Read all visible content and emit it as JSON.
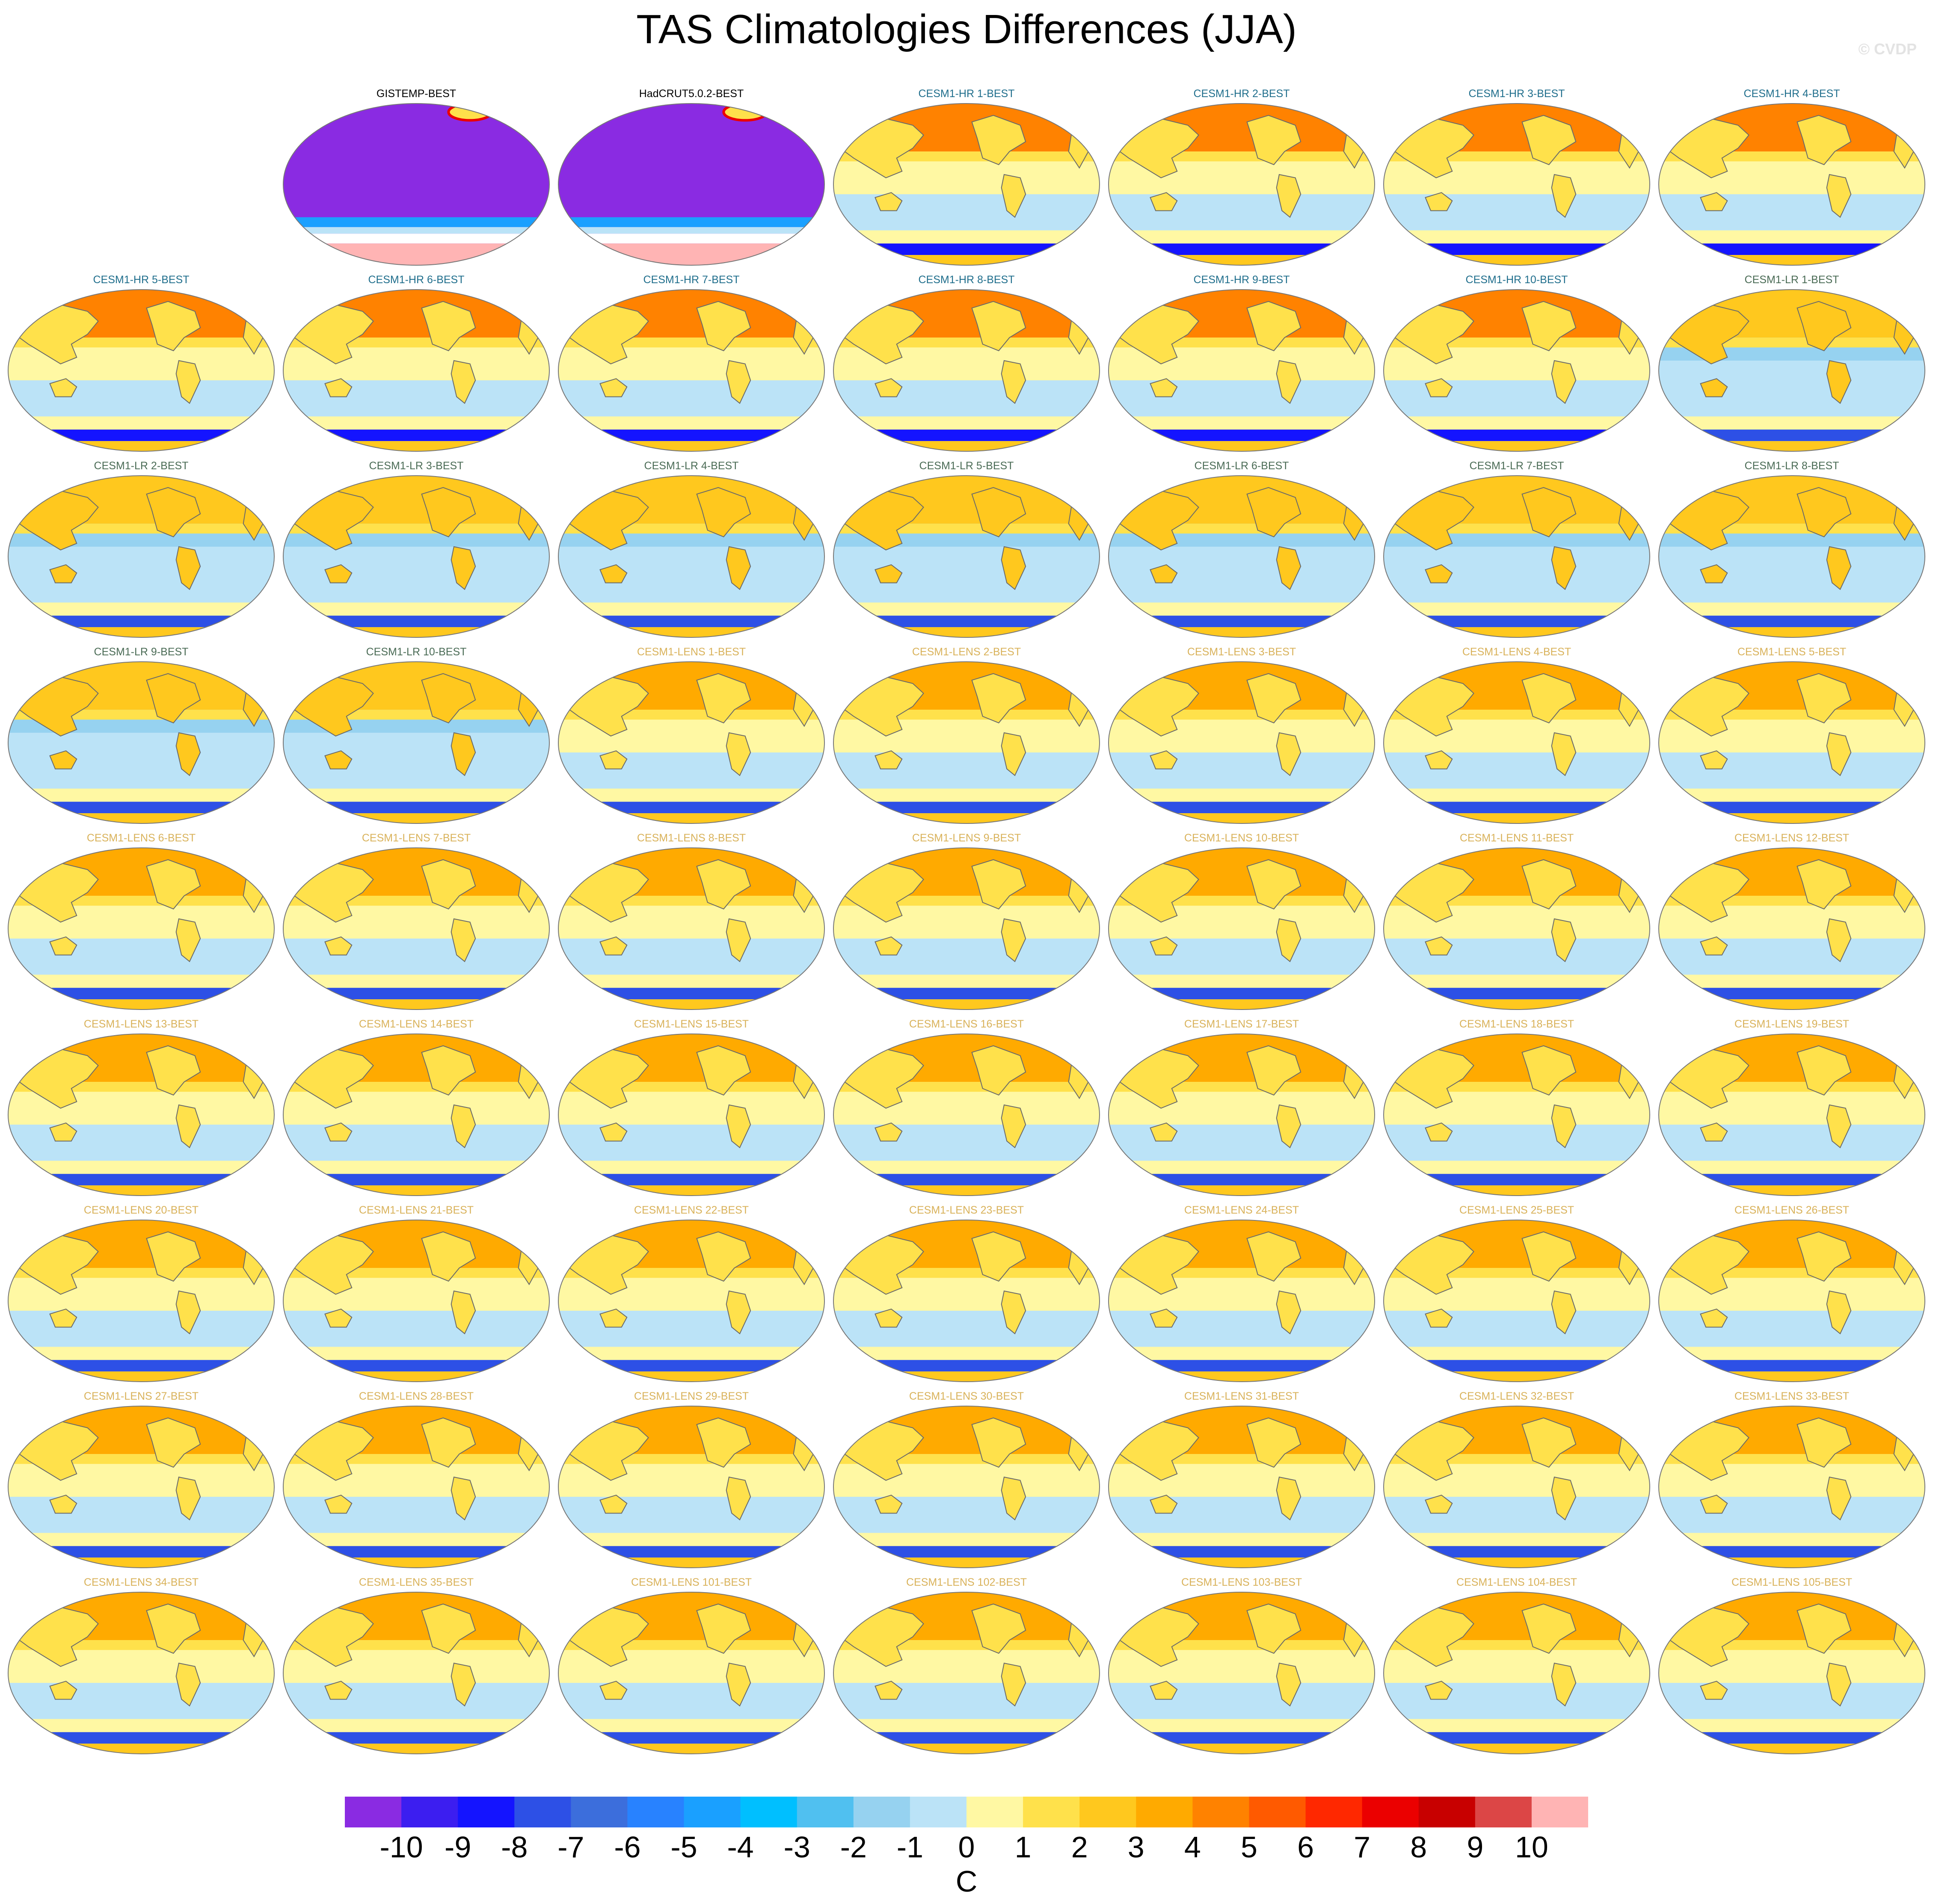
{
  "title": "TAS Climatologies Differences (JJA)",
  "credit": "© CVDP",
  "colorbar": {
    "labels": [
      "-10",
      "-9",
      "-8",
      "-7",
      "-6",
      "-5",
      "-4",
      "-3",
      "-2",
      "-1",
      "0",
      "1",
      "2",
      "3",
      "4",
      "5",
      "6",
      "7",
      "8",
      "9",
      "10"
    ],
    "unit": "C",
    "colors": [
      "#8a2be2",
      "#3c1ef0",
      "#1414ff",
      "#2d50e6",
      "#3c6edc",
      "#2882ff",
      "#1aa0ff",
      "#00bfff",
      "#50c0f0",
      "#96d2f0",
      "#bbe3f7",
      "#fff8a3",
      "#ffe14b",
      "#ffc81e",
      "#ffaa00",
      "#ff8200",
      "#ff5a00",
      "#ff2800",
      "#eb0000",
      "#c80000",
      "#dc4646",
      "#ffb4b4"
    ]
  },
  "chart_data": {
    "type": "heatmap",
    "title": "TAS Climatologies Differences (JJA)",
    "levels": [
      -10,
      -9,
      -8,
      -7,
      -6,
      -5,
      -4,
      -3,
      -2,
      -1,
      0,
      1,
      2,
      3,
      4,
      5,
      6,
      7,
      8,
      9,
      10
    ],
    "unit": "C",
    "panels": [
      {
        "title": "GISTEMP-BEST",
        "group": "obs"
      },
      {
        "title": "HadCRUT5.0.2-BEST",
        "group": "obs"
      },
      {
        "title": "CESM1-HR 1-BEST",
        "group": "hr"
      },
      {
        "title": "CESM1-HR 2-BEST",
        "group": "hr"
      },
      {
        "title": "CESM1-HR 3-BEST",
        "group": "hr"
      },
      {
        "title": "CESM1-HR 4-BEST",
        "group": "hr"
      },
      {
        "title": "CESM1-HR 5-BEST",
        "group": "hr"
      },
      {
        "title": "CESM1-HR 6-BEST",
        "group": "hr"
      },
      {
        "title": "CESM1-HR 7-BEST",
        "group": "hr"
      },
      {
        "title": "CESM1-HR 8-BEST",
        "group": "hr"
      },
      {
        "title": "CESM1-HR 9-BEST",
        "group": "hr"
      },
      {
        "title": "CESM1-HR 10-BEST",
        "group": "hr"
      },
      {
        "title": "CESM1-LR 1-BEST",
        "group": "lr"
      },
      {
        "title": "CESM1-LR 2-BEST",
        "group": "lr"
      },
      {
        "title": "CESM1-LR 3-BEST",
        "group": "lr"
      },
      {
        "title": "CESM1-LR 4-BEST",
        "group": "lr"
      },
      {
        "title": "CESM1-LR 5-BEST",
        "group": "lr"
      },
      {
        "title": "CESM1-LR 6-BEST",
        "group": "lr"
      },
      {
        "title": "CESM1-LR 7-BEST",
        "group": "lr"
      },
      {
        "title": "CESM1-LR 8-BEST",
        "group": "lr"
      },
      {
        "title": "CESM1-LR 9-BEST",
        "group": "lr"
      },
      {
        "title": "CESM1-LR 10-BEST",
        "group": "lr"
      },
      {
        "title": "CESM1-LENS 1-BEST",
        "group": "lens"
      },
      {
        "title": "CESM1-LENS 2-BEST",
        "group": "lens"
      },
      {
        "title": "CESM1-LENS 3-BEST",
        "group": "lens"
      },
      {
        "title": "CESM1-LENS 4-BEST",
        "group": "lens"
      },
      {
        "title": "CESM1-LENS 5-BEST",
        "group": "lens"
      },
      {
        "title": "CESM1-LENS 6-BEST",
        "group": "lens"
      },
      {
        "title": "CESM1-LENS 7-BEST",
        "group": "lens"
      },
      {
        "title": "CESM1-LENS 8-BEST",
        "group": "lens"
      },
      {
        "title": "CESM1-LENS 9-BEST",
        "group": "lens"
      },
      {
        "title": "CESM1-LENS 10-BEST",
        "group": "lens"
      },
      {
        "title": "CESM1-LENS 11-BEST",
        "group": "lens"
      },
      {
        "title": "CESM1-LENS 12-BEST",
        "group": "lens"
      },
      {
        "title": "CESM1-LENS 13-BEST",
        "group": "lens"
      },
      {
        "title": "CESM1-LENS 14-BEST",
        "group": "lens"
      },
      {
        "title": "CESM1-LENS 15-BEST",
        "group": "lens"
      },
      {
        "title": "CESM1-LENS 16-BEST",
        "group": "lens"
      },
      {
        "title": "CESM1-LENS 17-BEST",
        "group": "lens"
      },
      {
        "title": "CESM1-LENS 18-BEST",
        "group": "lens"
      },
      {
        "title": "CESM1-LENS 19-BEST",
        "group": "lens"
      },
      {
        "title": "CESM1-LENS 20-BEST",
        "group": "lens"
      },
      {
        "title": "CESM1-LENS 21-BEST",
        "group": "lens"
      },
      {
        "title": "CESM1-LENS 22-BEST",
        "group": "lens"
      },
      {
        "title": "CESM1-LENS 23-BEST",
        "group": "lens"
      },
      {
        "title": "CESM1-LENS 24-BEST",
        "group": "lens"
      },
      {
        "title": "CESM1-LENS 25-BEST",
        "group": "lens"
      },
      {
        "title": "CESM1-LENS 26-BEST",
        "group": "lens"
      },
      {
        "title": "CESM1-LENS 27-BEST",
        "group": "lens"
      },
      {
        "title": "CESM1-LENS 28-BEST",
        "group": "lens"
      },
      {
        "title": "CESM1-LENS 29-BEST",
        "group": "lens"
      },
      {
        "title": "CESM1-LENS 30-BEST",
        "group": "lens"
      },
      {
        "title": "CESM1-LENS 31-BEST",
        "group": "lens"
      },
      {
        "title": "CESM1-LENS 32-BEST",
        "group": "lens"
      },
      {
        "title": "CESM1-LENS 33-BEST",
        "group": "lens"
      },
      {
        "title": "CESM1-LENS 34-BEST",
        "group": "lens"
      },
      {
        "title": "CESM1-LENS 35-BEST",
        "group": "lens"
      },
      {
        "title": "CESM1-LENS 101-BEST",
        "group": "lens"
      },
      {
        "title": "CESM1-LENS 102-BEST",
        "group": "lens"
      },
      {
        "title": "CESM1-LENS 103-BEST",
        "group": "lens"
      },
      {
        "title": "CESM1-LENS 104-BEST",
        "group": "lens"
      },
      {
        "title": "CESM1-LENS 105-BEST",
        "group": "lens"
      }
    ],
    "group_title_colors": {
      "obs": "#000000",
      "hr": "#1f6e8c",
      "lr": "#4a6b55",
      "lens": "#d9b25a"
    },
    "grid": false,
    "legend": "bottom"
  }
}
